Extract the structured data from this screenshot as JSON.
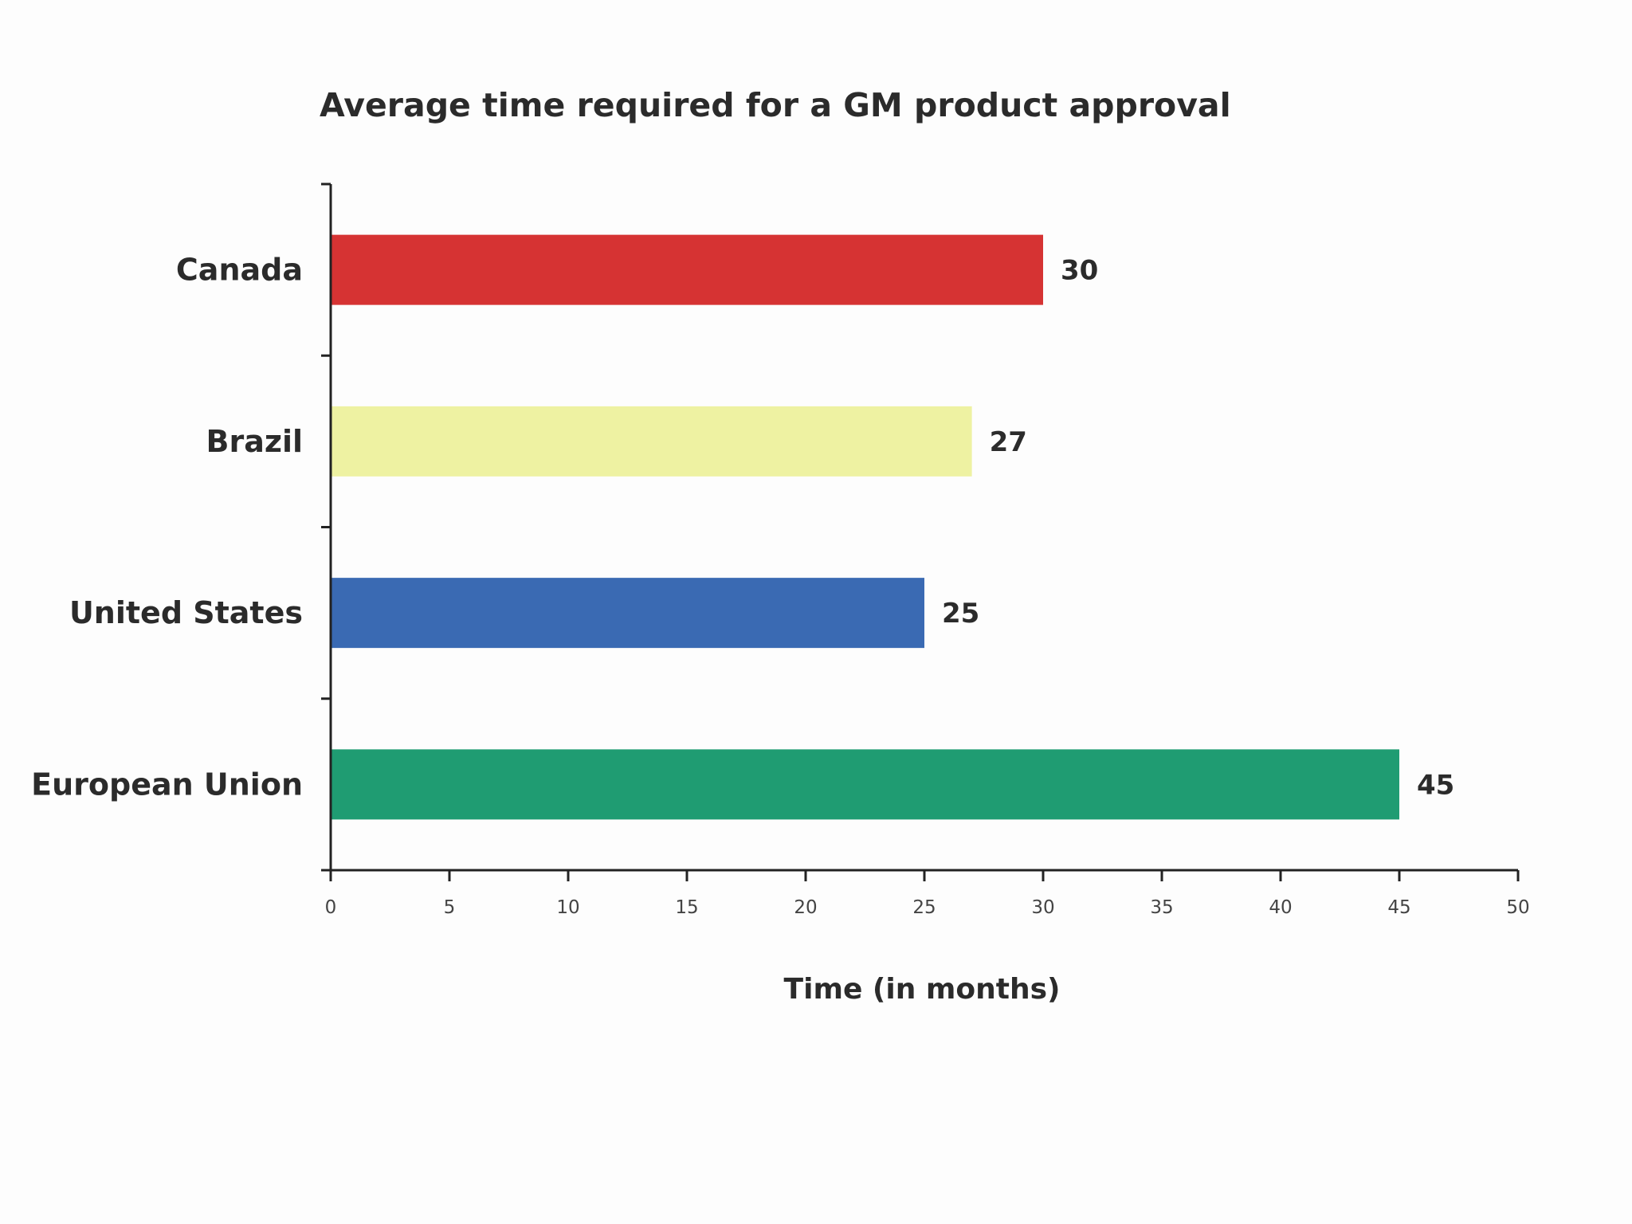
{
  "chart_data": {
    "type": "bar",
    "orientation": "horizontal",
    "title": "Average time required for a GM product approval",
    "xlabel": "Time (in months)",
    "ylabel": "",
    "categories": [
      "Canada",
      "Brazil",
      "United States",
      "European Union"
    ],
    "values": [
      30,
      27,
      25,
      45
    ],
    "value_labels": [
      "30",
      "27",
      "25",
      "45"
    ],
    "colors": [
      "#d63333",
      "#eef2a2",
      "#3a6ab3",
      "#1f9c72"
    ],
    "xlim": [
      0,
      50
    ],
    "xticks": [
      0,
      5,
      10,
      15,
      20,
      25,
      30,
      35,
      40,
      45,
      50
    ],
    "grid": false,
    "legend": "none"
  }
}
